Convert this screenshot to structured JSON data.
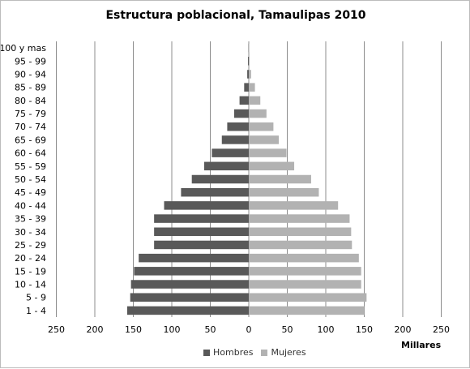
{
  "chart_data": {
    "type": "bar",
    "orientation": "horizontal",
    "subtype": "population-pyramid",
    "title": "Estructura poblacional, Tamaulipas 2010",
    "units_label": "Millares",
    "categories": [
      "1 - 4",
      "5 - 9",
      "10 - 14",
      "15 - 19",
      "20 - 24",
      "25 - 29",
      "30 - 34",
      "35 - 39",
      "40 - 44",
      "45 - 49",
      "50 - 54",
      "55 - 59",
      "60 - 64",
      "65 - 69",
      "70 - 74",
      "75 - 79",
      "80 - 84",
      "85 - 89",
      "90 - 94",
      "95 - 99",
      "100 y mas"
    ],
    "series": [
      {
        "name": "Hombres",
        "direction": "left",
        "color": "#595959",
        "values": [
          158,
          154,
          153,
          149,
          143,
          123,
          123,
          123,
          110,
          88,
          74,
          58,
          48,
          35,
          28,
          19,
          12,
          6,
          2,
          1,
          0.3
        ]
      },
      {
        "name": "Mujeres",
        "direction": "right",
        "color": "#b2b2b2",
        "values": [
          150,
          153,
          146,
          146,
          143,
          134,
          133,
          131,
          116,
          91,
          81,
          59,
          49,
          39,
          32,
          23,
          15,
          8,
          3,
          1,
          0.3
        ]
      }
    ],
    "xlim": [
      -250,
      250
    ],
    "xticks": [
      -250,
      -200,
      -150,
      -100,
      -50,
      0,
      50,
      100,
      150,
      200,
      250
    ],
    "xtick_labels": [
      "250",
      "200",
      "150",
      "100",
      "50",
      "0",
      "50",
      "100",
      "150",
      "200",
      "250"
    ],
    "grid": true,
    "legend_position": "bottom"
  }
}
